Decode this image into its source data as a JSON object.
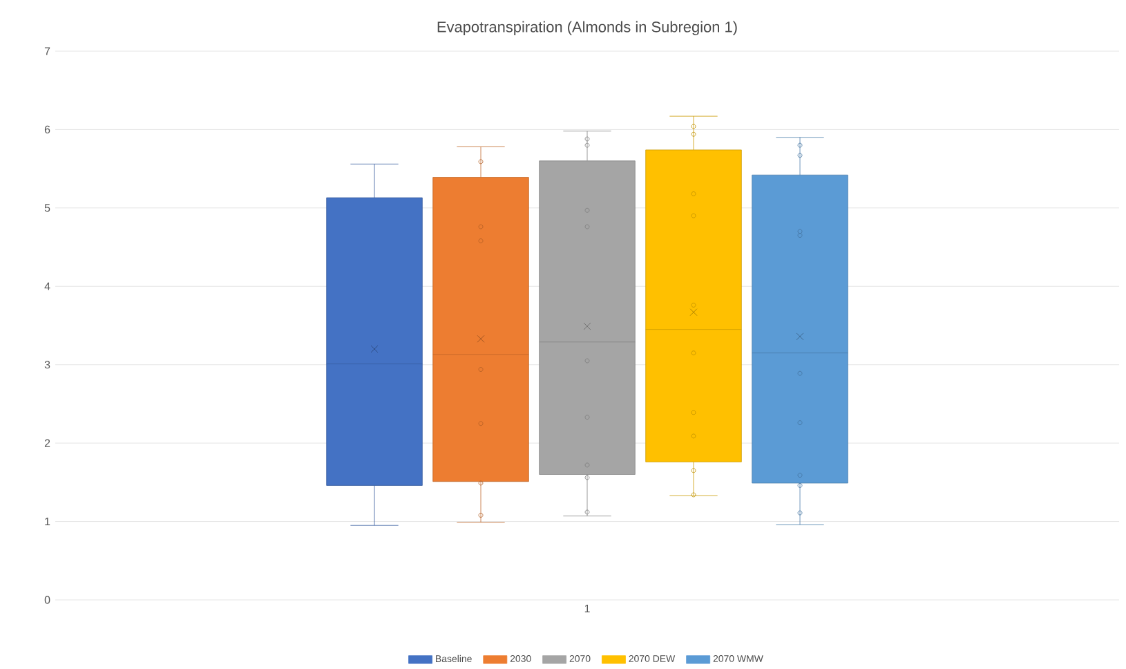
{
  "chart_data": {
    "type": "box",
    "title": "Evapotranspiration (Almonds in Subregion 1)",
    "categories": [
      "1"
    ],
    "ylim": [
      0,
      7
    ],
    "yticks": [
      0,
      1,
      2,
      3,
      4,
      5,
      6,
      7
    ],
    "grid": "y",
    "legend": "bottom",
    "series": [
      {
        "name": "Baseline",
        "color": "#4472c4",
        "boxes": [
          {
            "low": 0.95,
            "q1": 1.46,
            "median": 3.01,
            "q3": 5.13,
            "high": 5.56,
            "mean": 3.2
          }
        ]
      },
      {
        "name": "2030",
        "color": "#ed7d31",
        "boxes": [
          {
            "low": 0.99,
            "q1": 1.51,
            "median": 3.13,
            "q3": 5.39,
            "high": 5.78,
            "mean": 3.33,
            "outliers": [
              5.59,
              4.76,
              4.58,
              2.94,
              2.25,
              1.49,
              1.08
            ]
          }
        ]
      },
      {
        "name": "2070",
        "color": "#a5a5a5",
        "boxes": [
          {
            "low": 1.07,
            "q1": 1.6,
            "median": 3.29,
            "q3": 5.6,
            "high": 5.98,
            "mean": 3.49,
            "outliers": [
              5.88,
              5.8,
              4.97,
              4.76,
              3.05,
              2.33,
              1.72,
              1.56,
              1.12
            ]
          }
        ]
      },
      {
        "name": "2070 DEW",
        "color": "#ffc000",
        "boxes": [
          {
            "low": 1.33,
            "q1": 1.76,
            "median": 3.45,
            "q3": 5.74,
            "high": 6.17,
            "mean": 3.67,
            "outliers": [
              6.04,
              5.94,
              5.18,
              4.9,
              3.76,
              3.15,
              2.39,
              2.09,
              1.65,
              1.34
            ]
          }
        ]
      },
      {
        "name": "2070 WMW",
        "color": "#5b9bd5",
        "boxes": [
          {
            "low": 0.96,
            "q1": 1.49,
            "median": 3.15,
            "q3": 5.42,
            "high": 5.9,
            "mean": 3.36,
            "outliers": [
              5.8,
              5.67,
              4.7,
              4.65,
              2.89,
              2.26,
              1.59,
              1.46,
              1.11
            ]
          }
        ]
      }
    ]
  }
}
